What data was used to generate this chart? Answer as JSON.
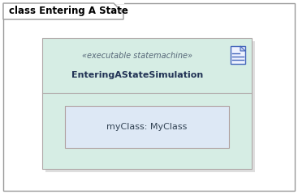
{
  "bg_color": "#ffffff",
  "outer_border_color": "#999999",
  "tab_text": "class Entering A State",
  "tab_font_size": 8.5,
  "tab_bg": "#ffffff",
  "tab_text_color": "#000000",
  "inner_box_bg": "#d6ede4",
  "inner_box_border": "#b0a8a8",
  "inner_box_shadow": "#c8c8c8",
  "stereotype_text": "«executable statemachine»",
  "stereotype_color": "#556677",
  "stereotype_font_size": 7.0,
  "class_name": "EnteringAStateSimulation",
  "class_name_color": "#223355",
  "class_name_font_size": 8.0,
  "inner_class_bg": "#dde8f5",
  "inner_class_border": "#b0a0a0",
  "inner_class_text": "myClass: MyClass",
  "inner_class_font_size": 8.0,
  "inner_class_text_color": "#334455",
  "icon_color": "#4466bb",
  "icon_bg": "#eef2ff",
  "icon_fold_color": "#c8d4ee"
}
